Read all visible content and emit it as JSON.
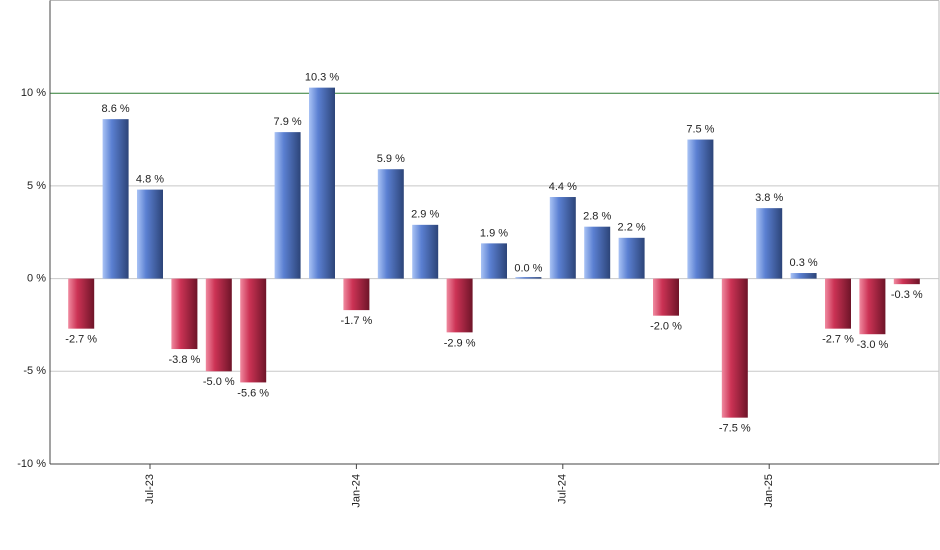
{
  "chart_data": {
    "type": "bar",
    "categories": [
      null,
      null,
      "Jul-23",
      null,
      null,
      null,
      null,
      null,
      "Jan-24",
      null,
      null,
      null,
      null,
      null,
      "Jul-24",
      null,
      null,
      null,
      null,
      null,
      "Jan-25",
      null,
      null,
      null,
      null
    ],
    "values": [
      -2.7,
      8.6,
      4.8,
      -3.8,
      -5.0,
      -5.6,
      7.9,
      10.3,
      -1.7,
      5.9,
      2.9,
      -2.9,
      1.9,
      0.0,
      4.4,
      2.8,
      2.2,
      -2.0,
      7.5,
      -7.5,
      3.8,
      0.3,
      -2.7,
      -3.0,
      -0.3
    ],
    "value_labels": [
      "-2.7 %",
      "8.6 %",
      "4.8 %",
      "-3.8 %",
      "-5.0 %",
      "-5.6 %",
      "7.9 %",
      "10.3 %",
      "-1.7 %",
      "5.9 %",
      "2.9 %",
      "-2.9 %",
      "1.9 %",
      "0.0 %",
      "4.4 %",
      "2.8 %",
      "2.2 %",
      "-2.0 %",
      "7.5 %",
      "-7.5 %",
      "3.8 %",
      "0.3 %",
      "-2.7 %",
      "-3.0 %",
      "-0.3 %"
    ],
    "positive_color": "#5b80d2",
    "negative_color": "#cc3355",
    "ylim": [
      -10,
      15
    ],
    "yticks": [
      {
        "value": -10,
        "label": "-10 %"
      },
      {
        "value": -5,
        "label": "-5 %"
      },
      {
        "value": 0,
        "label": "0 %"
      },
      {
        "value": 5,
        "label": "5 %"
      },
      {
        "value": 10,
        "label": "10 %"
      }
    ],
    "grid": true,
    "highlight_line": {
      "value": 10,
      "color": "#2e7d32"
    }
  }
}
